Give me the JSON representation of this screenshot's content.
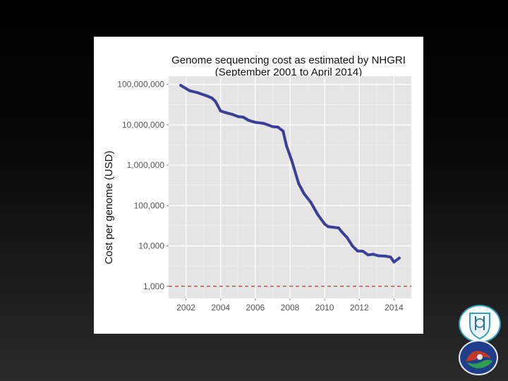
{
  "chart_data": {
    "type": "line",
    "title": "Genome sequencing cost as estimated by NHGRI",
    "subtitle": "(September 2001 to April 2014)",
    "xlabel": "",
    "ylabel": "Cost per genome (USD)",
    "y_scale": "log",
    "xlim": [
      2001.0,
      2015.0
    ],
    "ylim": [
      500,
      160000000
    ],
    "x_ticks": [
      2002,
      2004,
      2006,
      2008,
      2010,
      2012,
      2014
    ],
    "x_tick_labels": [
      "2002",
      "2004",
      "2006",
      "2008",
      "2010",
      "2012",
      "2014"
    ],
    "y_ticks": [
      1000,
      10000,
      100000,
      1000000,
      10000000,
      100000000
    ],
    "y_tick_labels": [
      "1,000",
      "10,000",
      "100,000",
      "1,000,000",
      "10,000,000",
      "100,000,000"
    ],
    "grid": true,
    "reference_line": {
      "y": 1000,
      "style": "dashed",
      "color": "#c0392b"
    },
    "series_color": "#3b3f96",
    "series": [
      {
        "x": [
          2001.7,
          2002.2,
          2002.7,
          2003.2,
          2003.5,
          2003.7,
          2004.0,
          2004.3,
          2004.7,
          2005.0,
          2005.3,
          2005.6,
          2006.0,
          2006.5,
          2007.0,
          2007.3,
          2007.6,
          2007.8,
          2008.1,
          2008.5,
          2008.8,
          2009.2,
          2009.6,
          2010.0,
          2010.2,
          2010.5,
          2010.8,
          2011.0,
          2011.3,
          2011.6,
          2011.9,
          2012.2,
          2012.5,
          2012.8,
          2013.1,
          2013.5,
          2013.8,
          2014.0,
          2014.3
        ],
        "y": [
          95000000,
          70000000,
          62000000,
          52000000,
          46000000,
          38000000,
          22000000,
          20000000,
          18000000,
          16000000,
          15500000,
          13000000,
          11500000,
          10800000,
          9000000,
          8800000,
          7000000,
          3000000,
          1300000,
          350000,
          200000,
          120000,
          60000,
          35000,
          30000,
          29000,
          28000,
          22000,
          16000,
          10000,
          7500,
          7400,
          6000,
          6200,
          5700,
          5600,
          5300,
          4000,
          5000
        ]
      }
    ]
  },
  "logos": {
    "top": "university-seal",
    "bottom": "institute-emblem"
  }
}
